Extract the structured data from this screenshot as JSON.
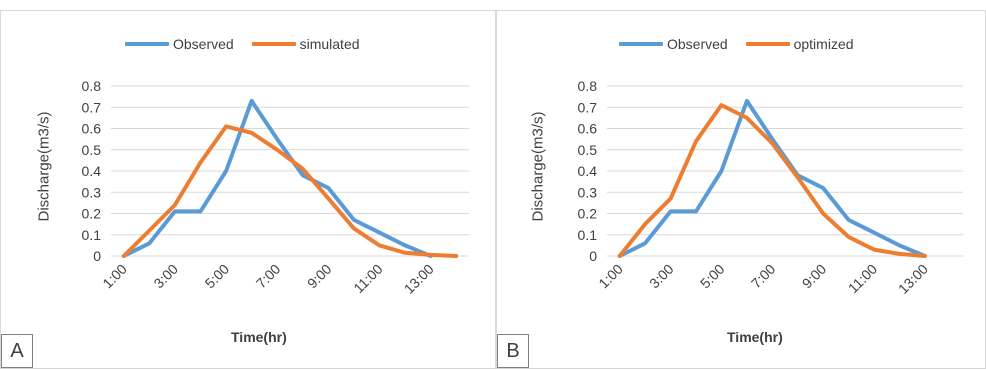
{
  "colors": {
    "observed": "#5b9bd5",
    "model": "#ed7d31",
    "grid": "#d9d9d9",
    "text": "#404040"
  },
  "chart_data": [
    {
      "type": "line",
      "panel_label": "A",
      "xlabel": "Time(hr)",
      "ylabel": "Discharge(m3/s)",
      "ylim": [
        0,
        0.8
      ],
      "yticks": [
        "0",
        "0.1",
        "0.2",
        "0.3",
        "0.4",
        "0.5",
        "0.6",
        "0.7",
        "0.8"
      ],
      "categories": [
        "1:00",
        "2:00",
        "3:00",
        "4:00",
        "5:00",
        "6:00",
        "7:00",
        "8:00",
        "9:00",
        "10:00",
        "11:00",
        "12:00",
        "13:00",
        "14:00"
      ],
      "xtick_labels": [
        "1:00",
        "3:00",
        "5:00",
        "7:00",
        "9:00",
        "11:00",
        "13:00"
      ],
      "legend_position": "top",
      "grid": true,
      "series": [
        {
          "name": "Observed",
          "color_key": "observed",
          "values": [
            0,
            0.06,
            0.21,
            0.21,
            0.4,
            0.73,
            0.55,
            0.38,
            0.32,
            0.17,
            0.11,
            0.05,
            0.0,
            null
          ]
        },
        {
          "name": "simulated",
          "color_key": "model",
          "values": [
            0,
            0.12,
            0.24,
            0.44,
            0.61,
            0.58,
            0.5,
            0.41,
            0.27,
            0.13,
            0.05,
            0.015,
            0.005,
            0.0
          ]
        }
      ]
    },
    {
      "type": "line",
      "panel_label": "B",
      "xlabel": "Time(hr)",
      "ylabel": "Discharge(m3/s)",
      "ylim": [
        0,
        0.8
      ],
      "yticks": [
        "0",
        "0.1",
        "0.2",
        "0.3",
        "0.4",
        "0.5",
        "0.6",
        "0.7",
        "0.8"
      ],
      "categories": [
        "1:00",
        "2:00",
        "3:00",
        "4:00",
        "5:00",
        "6:00",
        "7:00",
        "8:00",
        "9:00",
        "10:00",
        "11:00",
        "12:00",
        "13:00",
        "14:00"
      ],
      "xtick_labels": [
        "1:00",
        "3:00",
        "5:00",
        "7:00",
        "9:00",
        "11:00",
        "13:00"
      ],
      "legend_position": "top",
      "grid": true,
      "series": [
        {
          "name": "Observed",
          "color_key": "observed",
          "values": [
            0,
            0.06,
            0.21,
            0.21,
            0.4,
            0.73,
            0.55,
            0.38,
            0.32,
            0.17,
            0.11,
            0.05,
            0.0,
            null
          ]
        },
        {
          "name": "optimized",
          "color_key": "model",
          "values": [
            0,
            0.15,
            0.27,
            0.54,
            0.71,
            0.65,
            0.53,
            0.37,
            0.2,
            0.09,
            0.03,
            0.01,
            0.0,
            null
          ]
        }
      ]
    }
  ]
}
